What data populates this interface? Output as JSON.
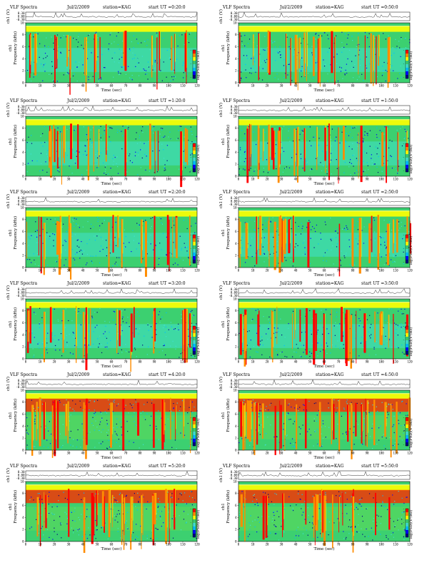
{
  "common": {
    "title": "VLF Spectra",
    "station": "station=KAG",
    "x_label": "Time (sec)",
    "y_label_top": "ch1 (V)",
    "y_label_spec_1": "ch1",
    "y_label_spec_2": "Frequency (kHz)",
    "colorbar_label": "log(PSD)(V²/Hz)",
    "top_ticks": [
      "0.30",
      "0.00",
      "-0.30"
    ],
    "freq_ticks": [
      "0",
      "2",
      "4",
      "6",
      "8",
      "10"
    ],
    "colorbar_ticks": [
      "-",
      "-",
      "-"
    ],
    "time_ticks": [
      "0",
      "10",
      "20",
      "30",
      "40",
      "50",
      "60",
      "70",
      "80",
      "90",
      "100",
      "110",
      "120"
    ]
  },
  "panels": [
    {
      "date": "Jul/2/2009",
      "ut": "start UT =0:20:0"
    },
    {
      "date": "Jul/2/2009",
      "ut": "start UT =0:50:0"
    },
    {
      "date": "Jul/2/2009",
      "ut": "start UT =1:20:0"
    },
    {
      "date": "Jul/2/2009",
      "ut": "start UT =1:50:0"
    },
    {
      "date": "Jul/2/2009",
      "ut": "start UT =2:20:0"
    },
    {
      "date": "Jul/2/2009",
      "ut": "start UT =2:50:0"
    },
    {
      "date": "Jul/2/2009",
      "ut": "start UT =3:20:0"
    },
    {
      "date": "Jul/2/2009",
      "ut": "start UT =3:50:0"
    },
    {
      "date": "Jul/2/2009",
      "ut": "start UT =4:20:0"
    },
    {
      "date": "Jul/2/2009",
      "ut": "start UT =4:50:0"
    },
    {
      "date": "Jul/2/2009",
      "ut": "start UT =5:20:0"
    },
    {
      "date": "Jul/2/2009",
      "ut": "start UT =5:50:0"
    }
  ],
  "chart_data": {
    "type": "heatmap",
    "x_range": [
      0,
      120
    ],
    "y_range_khz": [
      0,
      10
    ],
    "top_trace_range_v": [
      -0.3,
      0.3
    ],
    "grid": false,
    "colormap": [
      "#000080",
      "#0000ff",
      "#00bfff",
      "#40e0d0",
      "#3cd070",
      "#ffff00",
      "#ff8c00",
      "#ff0000"
    ],
    "colors": {
      "background": "#3cd070",
      "upper_band": "#ffff00",
      "burst": "#ff0000",
      "quiet": "#40e0d0"
    }
  }
}
